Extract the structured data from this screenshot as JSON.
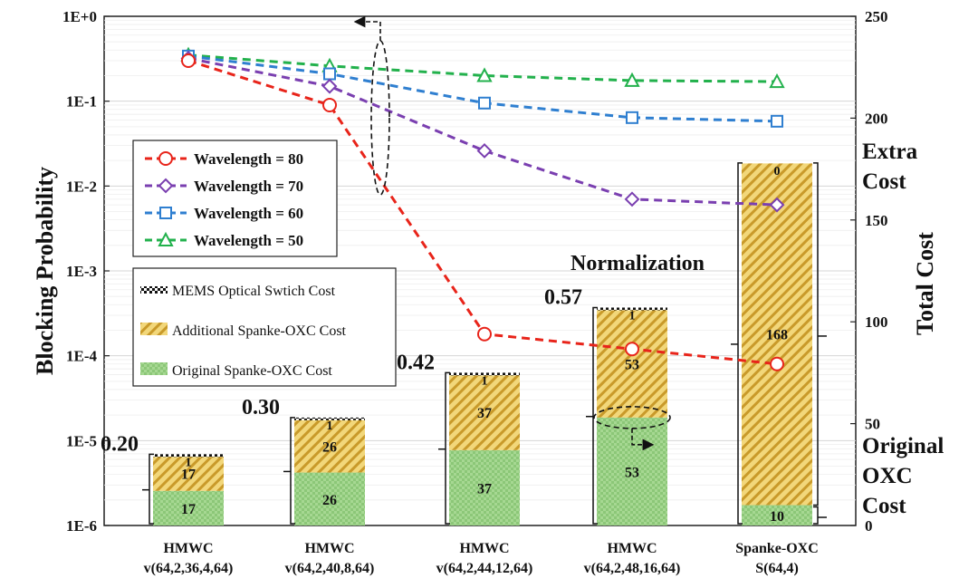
{
  "colors": {
    "wl80": "#e8241a",
    "wl70": "#7a3fb0",
    "wl60": "#2f7fd0",
    "wl50": "#22b14c",
    "grid": "#d6d6d6",
    "additional": "#f0d070",
    "additional_hatch": "#b8891e",
    "original": "#9fd48a",
    "original_hatch": "#7fbf68",
    "mems": "#111111"
  },
  "chart_data": {
    "type": "combo-line-stacked-bar",
    "y_left_label": "Blocking Probability",
    "y_left_scale": "log",
    "y_left_ticks": [
      "1E+0",
      "1E-1",
      "1E-2",
      "1E-3",
      "1E-4",
      "1E-5",
      "1E-6"
    ],
    "y_left_range": [
      1e-06,
      1
    ],
    "y_right_label": "Total Cost",
    "y_right_ticks": [
      0,
      50,
      100,
      150,
      200,
      250
    ],
    "y_right_range": [
      0,
      250
    ],
    "categories": [
      {
        "line1": "HMWC",
        "line2": "v(64,2,36,4,64)"
      },
      {
        "line1": "HMWC",
        "line2": "v(64,2,40,8,64)"
      },
      {
        "line1": "HMWC",
        "line2": "v(64,2,44,12,64)"
      },
      {
        "line1": "HMWC",
        "line2": "v(64,2,48,16,64)"
      },
      {
        "line1": "Spanke-OXC",
        "line2": "S(64,4)"
      }
    ],
    "series": [
      {
        "name": "Wavelength = 80",
        "key": "wl80",
        "marker": "circle",
        "values": [
          0.3,
          0.09,
          0.00018,
          0.00012,
          8e-05
        ]
      },
      {
        "name": "Wavelength = 70",
        "key": "wl70",
        "marker": "diamond",
        "values": [
          0.32,
          0.15,
          0.026,
          0.007,
          0.006
        ]
      },
      {
        "name": "Wavelength = 60",
        "key": "wl60",
        "marker": "square",
        "values": [
          0.34,
          0.21,
          0.095,
          0.064,
          0.058
        ]
      },
      {
        "name": "Wavelength = 50",
        "key": "wl50",
        "marker": "triangle",
        "values": [
          0.35,
          0.26,
          0.2,
          0.175,
          0.17
        ]
      }
    ],
    "bars": {
      "stack_series": [
        {
          "name": "MEMS Optical Swtich Cost",
          "key": "mems"
        },
        {
          "name": "Additional Spanke-OXC Cost",
          "key": "additional"
        },
        {
          "name": "Original Spanke-OXC Cost",
          "key": "original"
        }
      ],
      "original": [
        17,
        26,
        37,
        53,
        10
      ],
      "additional": [
        17,
        26,
        37,
        53,
        168
      ],
      "mems": [
        1,
        1,
        1,
        1,
        0
      ],
      "labels_original": [
        "17",
        "26",
        "37",
        "53",
        "10"
      ],
      "labels_additional": [
        "17",
        "26",
        "37",
        "53",
        "168"
      ],
      "labels_mems": [
        "1",
        "1",
        "1",
        "1",
        "0"
      ],
      "normalized": [
        "0.20",
        "0.30",
        "0.42",
        "0.57",
        ""
      ]
    },
    "annotations": {
      "normalization": "Normalization",
      "extra_cost_line1": "Extra",
      "extra_cost_line2": "Cost",
      "original_cost_line1": "Original",
      "original_cost_line2": "OXC",
      "original_cost_line3": "Cost"
    }
  }
}
